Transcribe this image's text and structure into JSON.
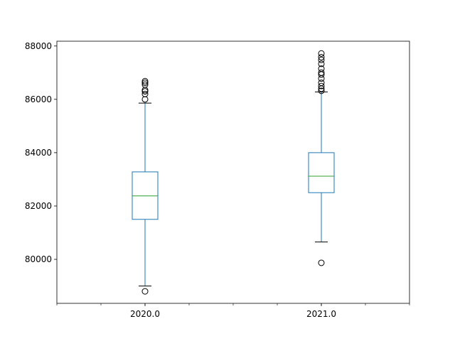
{
  "chart_data": {
    "type": "box",
    "title": "",
    "xlabel": "",
    "ylabel": "",
    "categories": [
      "2020.0",
      "2021.0"
    ],
    "ylim": [
      78350,
      88180
    ],
    "yticks": [
      80000,
      82000,
      84000,
      86000,
      88000
    ],
    "ytick_labels": [
      "80000",
      "82000",
      "84000",
      "86000",
      "88000"
    ],
    "grid": false,
    "legend": "none",
    "boxes": [
      {
        "name": "2020.0",
        "whisker_low": 79000,
        "q1": 81500,
        "median": 82380,
        "q3": 83280,
        "whisker_high": 85860,
        "outliers": [
          78800,
          86000,
          86200,
          86300,
          86350,
          86550,
          86620,
          86680
        ]
      },
      {
        "name": "2021.0",
        "whisker_low": 80650,
        "q1": 82500,
        "median": 83120,
        "q3": 84000,
        "whisker_high": 86280,
        "outliers": [
          79870,
          86320,
          86400,
          86500,
          86620,
          86780,
          86930,
          87000,
          87150,
          87330,
          87480,
          87580,
          87720
        ]
      }
    ],
    "colors": {
      "box": "#1f77b4",
      "median": "#2ca02c",
      "whisker_cap": "#000000",
      "outlier": "#000000",
      "axes": "#000000"
    }
  }
}
